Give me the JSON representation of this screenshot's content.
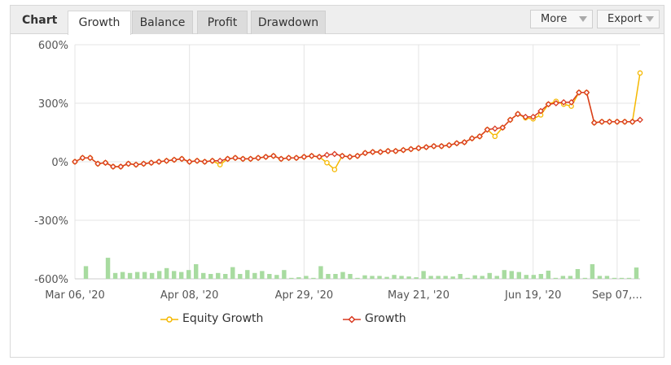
{
  "header": {
    "title": "Chart",
    "tabs": [
      "Growth",
      "Balance",
      "Profit",
      "Drawdown"
    ],
    "active_tab": "Growth",
    "more_label": "More",
    "export_label": "Export"
  },
  "colors": {
    "equity": "#f5b800",
    "growth": "#d93a21",
    "bars": "#a8dba0",
    "grid": "#e4e4e4"
  },
  "chart_data": {
    "type": "line",
    "y_ticks": [
      "600%",
      "300%",
      "0%",
      "-300%",
      "-600%"
    ],
    "ylim": [
      -600,
      600
    ],
    "x_ticks": [
      "Mar 06, '20",
      "Apr 08, '20",
      "Apr 29, '20",
      "May 21, '20",
      "Jun 19, '20",
      "Sep 07,..."
    ],
    "x_tick_index": [
      0,
      15,
      30,
      45,
      60,
      71
    ],
    "grid": true,
    "legend_position": "bottom",
    "series": [
      {
        "name": "Equity Growth",
        "values": [
          0,
          20,
          20,
          -10,
          -5,
          -25,
          -25,
          -10,
          -15,
          -10,
          -5,
          0,
          5,
          10,
          15,
          0,
          5,
          0,
          5,
          -15,
          15,
          20,
          15,
          15,
          20,
          25,
          30,
          15,
          20,
          20,
          25,
          30,
          25,
          -5,
          -40,
          30,
          25,
          30,
          45,
          50,
          50,
          55,
          55,
          60,
          65,
          70,
          75,
          80,
          80,
          85,
          95,
          100,
          120,
          130,
          165,
          130,
          175,
          215,
          245,
          225,
          220,
          240,
          295,
          310,
          295,
          285,
          355,
          355,
          200,
          205,
          205,
          205,
          205,
          205,
          455
        ]
      },
      {
        "name": "Growth",
        "values": [
          0,
          20,
          20,
          -10,
          -5,
          -25,
          -25,
          -10,
          -15,
          -10,
          -5,
          0,
          5,
          10,
          15,
          0,
          5,
          0,
          5,
          5,
          15,
          20,
          15,
          15,
          20,
          25,
          30,
          15,
          20,
          20,
          25,
          30,
          25,
          35,
          40,
          30,
          25,
          30,
          45,
          50,
          50,
          55,
          55,
          60,
          65,
          70,
          75,
          80,
          80,
          85,
          95,
          100,
          120,
          130,
          165,
          170,
          175,
          215,
          245,
          230,
          230,
          260,
          295,
          300,
          305,
          305,
          355,
          355,
          200,
          205,
          205,
          205,
          205,
          205,
          215
        ]
      },
      {
        "name": "",
        "kind": "bars",
        "values": [
          0,
          65,
          0,
          0,
          108,
          30,
          35,
          30,
          35,
          35,
          30,
          40,
          55,
          40,
          35,
          45,
          75,
          30,
          25,
          30,
          25,
          60,
          25,
          45,
          30,
          40,
          25,
          20,
          45,
          5,
          8,
          15,
          5,
          65,
          25,
          25,
          35,
          25,
          5,
          18,
          15,
          15,
          10,
          20,
          15,
          12,
          8,
          40,
          15,
          15,
          15,
          12,
          25,
          5,
          18,
          15,
          30,
          15,
          45,
          40,
          35,
          20,
          20,
          25,
          42,
          5,
          15,
          15,
          50,
          5,
          75,
          15,
          15,
          5,
          5,
          5,
          58
        ]
      }
    ]
  },
  "legend": {
    "equity_label": "Equity Growth",
    "growth_label": "Growth"
  }
}
